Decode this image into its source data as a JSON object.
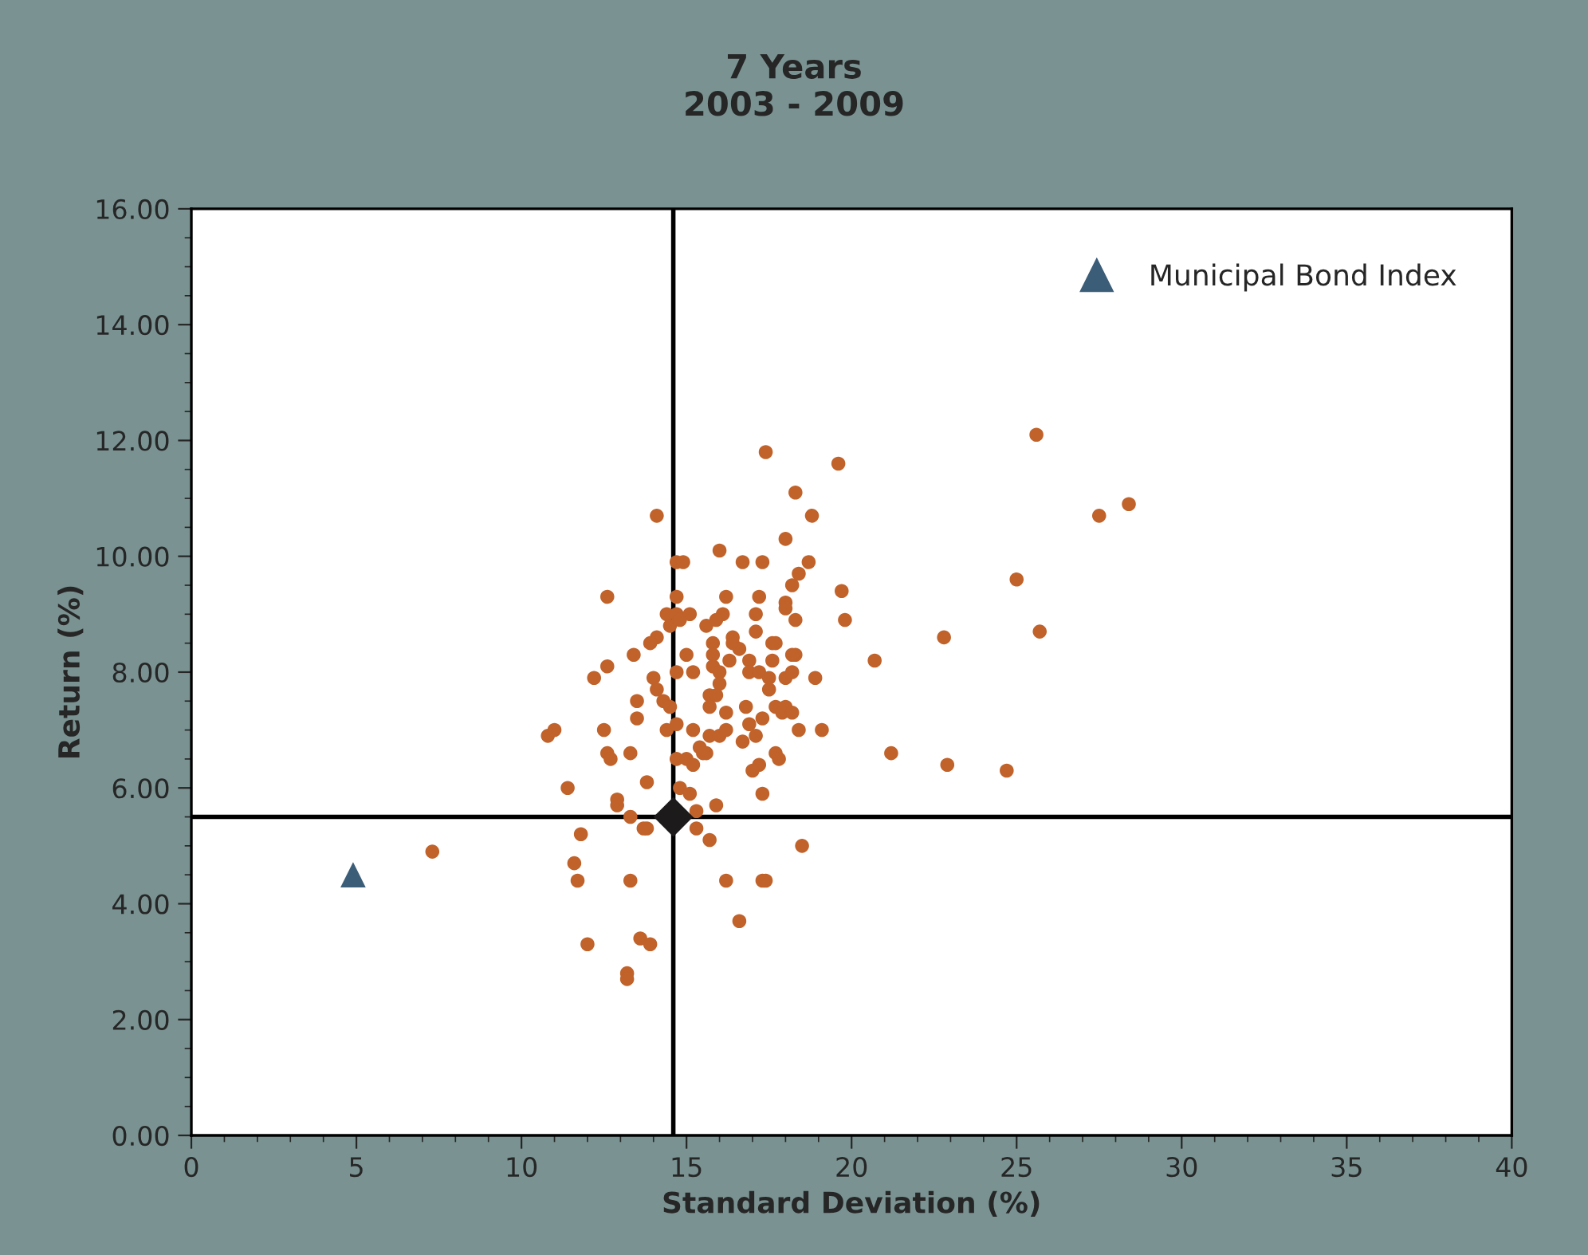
{
  "chart_data": {
    "type": "scatter",
    "title": "7 Years\n2003 - 2009",
    "xlabel": "Standard Deviation (%)",
    "ylabel": "Return (%)",
    "xlim": [
      0,
      40
    ],
    "xticks": [
      0,
      5,
      10,
      15,
      20,
      25,
      30,
      35,
      40
    ],
    "ylim": [
      0,
      16
    ],
    "yticks": [
      {
        "value": 0,
        "label": "0.00"
      },
      {
        "value": 2,
        "label": "2.00"
      },
      {
        "value": 4,
        "label": "4.00"
      },
      {
        "value": 6,
        "label": "6.00"
      },
      {
        "value": 8,
        "label": "8.00"
      },
      {
        "value": 10,
        "label": "10.00"
      },
      {
        "value": 12,
        "label": "12.00"
      },
      {
        "value": 14,
        "label": "14.00"
      },
      {
        "value": 16,
        "label": "16.00"
      }
    ],
    "grid": false,
    "legend": "top right",
    "ref_lines": [
      {
        "axis": "x",
        "value": 14.6,
        "color": "#000000"
      },
      {
        "axis": "y",
        "value": 5.5,
        "color": "#000000"
      }
    ],
    "series": [
      {
        "color": "#c0622a",
        "marker": "circle",
        "x": [
          7.3,
          10.8,
          11.0,
          11.4,
          11.6,
          11.8,
          11.7,
          12.0,
          12.2,
          12.6,
          12.6,
          12.5,
          12.6,
          12.7,
          12.9,
          12.9,
          17.4,
          19.6,
          18.3,
          18.8,
          14.1,
          18.0,
          16.0,
          14.7,
          14.9,
          16.7,
          17.3,
          18.7,
          18.4,
          18.2,
          19.7,
          14.7,
          16.2,
          17.2,
          18.0,
          18.0,
          16.1,
          17.1,
          19.8,
          18.3,
          14.4,
          14.7,
          14.5,
          14.8,
          15.1,
          15.6,
          15.9,
          17.1,
          14.1,
          13.9,
          15.8,
          16.4,
          16.4,
          16.6,
          17.6,
          17.7,
          15.0,
          13.4,
          15.8,
          16.3,
          16.9,
          17.6,
          18.3,
          18.2,
          20.7,
          15.8,
          16.9,
          17.2,
          16.0,
          14.7,
          15.2,
          14.0,
          17.5,
          17.5,
          18.0,
          18.2,
          18.9,
          16.0,
          15.7,
          15.9,
          14.1,
          14.3,
          14.5,
          13.5,
          13.5,
          15.7,
          16.2,
          16.8,
          17.7,
          18.0,
          17.9,
          17.3,
          18.2,
          16.9,
          19.1,
          14.7,
          14.4,
          15.2,
          15.7,
          16.0,
          16.2,
          17.1,
          18.4,
          16.7,
          13.3,
          14.7,
          15.0,
          15.2,
          15.4,
          15.6,
          15.5,
          17.2,
          17.0,
          17.7,
          17.8,
          13.8,
          14.8,
          15.1,
          17.3,
          15.9,
          13.3,
          13.8,
          13.7,
          15.3,
          15.3,
          15.7,
          18.5,
          13.3,
          16.2,
          17.3,
          17.4,
          16.6,
          13.6,
          13.9,
          13.2,
          13.2,
          25.6,
          25.0,
          25.7,
          22.8,
          21.2,
          22.9,
          24.7,
          27.5,
          28.4
        ],
        "values": [
          4.9,
          6.9,
          7.0,
          6.0,
          4.7,
          5.2,
          4.4,
          3.3,
          7.9,
          9.3,
          8.1,
          7.0,
          6.6,
          6.5,
          5.7,
          5.8,
          11.8,
          11.6,
          11.1,
          10.7,
          10.7,
          10.3,
          10.1,
          9.9,
          9.9,
          9.9,
          9.9,
          9.9,
          9.7,
          9.5,
          9.4,
          9.3,
          9.3,
          9.3,
          9.2,
          9.1,
          9.0,
          9.0,
          8.9,
          8.9,
          9.0,
          9.0,
          8.8,
          8.9,
          9.0,
          8.8,
          8.9,
          8.7,
          8.6,
          8.5,
          8.5,
          8.6,
          8.5,
          8.4,
          8.5,
          8.5,
          8.3,
          8.3,
          8.3,
          8.2,
          8.2,
          8.2,
          8.3,
          8.3,
          8.2,
          8.1,
          8.0,
          8.0,
          8.0,
          8.0,
          8.0,
          7.9,
          7.9,
          7.7,
          7.9,
          8.0,
          7.9,
          7.8,
          7.6,
          7.6,
          7.7,
          7.5,
          7.4,
          7.5,
          7.2,
          7.4,
          7.3,
          7.4,
          7.4,
          7.4,
          7.3,
          7.2,
          7.3,
          7.1,
          7.0,
          7.1,
          7.0,
          7.0,
          6.9,
          6.9,
          7.0,
          6.9,
          7.0,
          6.8,
          6.6,
          6.5,
          6.5,
          6.4,
          6.7,
          6.6,
          6.6,
          6.4,
          6.3,
          6.6,
          6.5,
          6.1,
          6.0,
          5.9,
          5.9,
          5.7,
          5.5,
          5.3,
          5.3,
          5.6,
          5.3,
          5.1,
          5.0,
          4.4,
          4.4,
          4.4,
          4.4,
          3.7,
          3.4,
          3.3,
          2.8,
          2.7,
          12.1,
          9.6,
          8.7,
          8.6,
          6.6,
          6.4,
          6.3,
          10.7,
          10.9
        ]
      },
      {
        "color": "#1c1a1a",
        "marker": "diamond",
        "x": [
          14.6
        ],
        "values": [
          5.5
        ]
      },
      {
        "name": "Municipal Bond Index",
        "color": "#3b5d78",
        "marker": "triangle",
        "x": [
          4.9
        ],
        "values": [
          4.5
        ]
      }
    ]
  }
}
